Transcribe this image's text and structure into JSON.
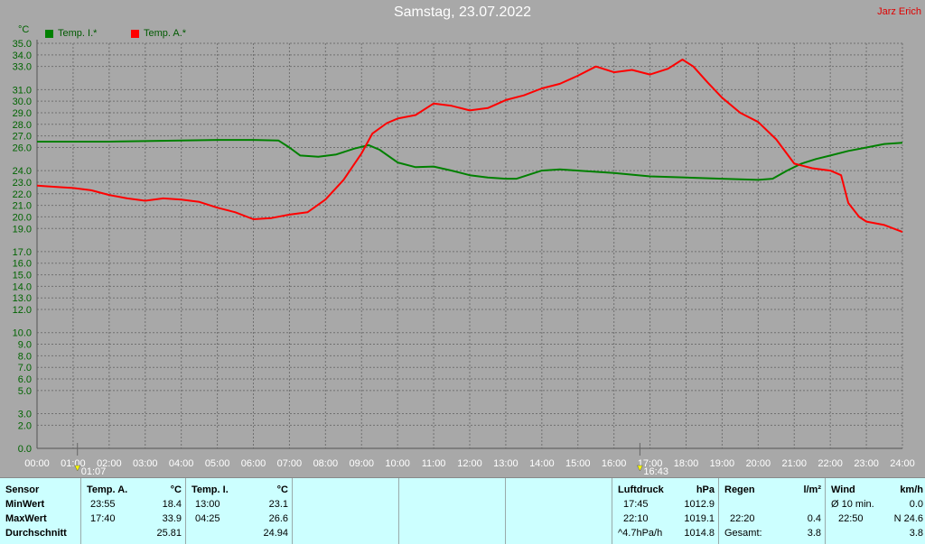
{
  "title": "Samstag, 23.07.2022",
  "author": "Jarz Erich",
  "colors": {
    "background": "#a8a8a8",
    "grid": "#707070",
    "axis": "#006400",
    "inside": "#008000",
    "outside": "#ff0000",
    "table_bg": "#ccffff"
  },
  "chart_data": {
    "type": "line",
    "title": "Samstag, 23.07.2022",
    "ylabel": "°C",
    "xlabel": "",
    "ylim": [
      0,
      35
    ],
    "grid": true,
    "legend_position": "top-left",
    "y_ticks": [
      "0.0",
      "2.0",
      "3.0",
      "5.0",
      "6.0",
      "7.0",
      "8.0",
      "9.0",
      "10.0",
      "12.0",
      "13.0",
      "14.0",
      "15.0",
      "16.0",
      "17.0",
      "19.0",
      "20.0",
      "21.0",
      "22.0",
      "23.0",
      "24.0",
      "26.0",
      "27.0",
      "28.0",
      "29.0",
      "30.0",
      "31.0",
      "33.0",
      "34.0",
      "35.0"
    ],
    "x_ticks": [
      "00:00",
      "01:00",
      "02:00",
      "03:00",
      "04:00",
      "05:00",
      "06:00",
      "07:00",
      "08:00",
      "09:00",
      "10:00",
      "11:00",
      "12:00",
      "13:00",
      "14:00",
      "15:00",
      "16:00",
      "17:00",
      "18:00",
      "19:00",
      "20:00",
      "21:00",
      "22:00",
      "23:00",
      "24:00"
    ],
    "markers": [
      {
        "label": "01:07",
        "hour": 1.12
      },
      {
        "label": "16:43",
        "hour": 16.72
      }
    ],
    "series": [
      {
        "name": "Temp. I.*",
        "color": "#008000",
        "points": [
          [
            0,
            26.5
          ],
          [
            1,
            26.5
          ],
          [
            2,
            26.5
          ],
          [
            3,
            26.55
          ],
          [
            4,
            26.6
          ],
          [
            5,
            26.65
          ],
          [
            6,
            26.65
          ],
          [
            6.7,
            26.6
          ],
          [
            7,
            26.0
          ],
          [
            7.3,
            25.3
          ],
          [
            7.8,
            25.2
          ],
          [
            8.3,
            25.4
          ],
          [
            8.8,
            25.9
          ],
          [
            9.2,
            26.2
          ],
          [
            9.5,
            25.8
          ],
          [
            10,
            24.7
          ],
          [
            10.5,
            24.3
          ],
          [
            11,
            24.35
          ],
          [
            11.5,
            24.0
          ],
          [
            12,
            23.6
          ],
          [
            12.5,
            23.4
          ],
          [
            13,
            23.3
          ],
          [
            13.3,
            23.3
          ],
          [
            13.6,
            23.6
          ],
          [
            14,
            24.0
          ],
          [
            14.5,
            24.1
          ],
          [
            15,
            24.0
          ],
          [
            16,
            23.8
          ],
          [
            17,
            23.5
          ],
          [
            18,
            23.4
          ],
          [
            19,
            23.3
          ],
          [
            20,
            23.2
          ],
          [
            20.4,
            23.3
          ],
          [
            20.8,
            24.0
          ],
          [
            21.2,
            24.6
          ],
          [
            21.6,
            25.0
          ],
          [
            22,
            25.3
          ],
          [
            22.5,
            25.7
          ],
          [
            23,
            26.0
          ],
          [
            23.5,
            26.3
          ],
          [
            24,
            26.4
          ]
        ]
      },
      {
        "name": "Temp. A.*",
        "color": "#ff0000",
        "points": [
          [
            0,
            22.7
          ],
          [
            0.5,
            22.6
          ],
          [
            1,
            22.5
          ],
          [
            1.5,
            22.3
          ],
          [
            2,
            21.9
          ],
          [
            2.5,
            21.6
          ],
          [
            3,
            21.4
          ],
          [
            3.5,
            21.6
          ],
          [
            4,
            21.5
          ],
          [
            4.5,
            21.3
          ],
          [
            5,
            20.8
          ],
          [
            5.5,
            20.4
          ],
          [
            6,
            19.8
          ],
          [
            6.5,
            19.9
          ],
          [
            7,
            20.2
          ],
          [
            7.5,
            20.4
          ],
          [
            8,
            21.5
          ],
          [
            8.5,
            23.2
          ],
          [
            9,
            25.5
          ],
          [
            9.3,
            27.2
          ],
          [
            9.7,
            28.1
          ],
          [
            10,
            28.5
          ],
          [
            10.5,
            28.8
          ],
          [
            11,
            29.8
          ],
          [
            11.5,
            29.6
          ],
          [
            12,
            29.2
          ],
          [
            12.5,
            29.4
          ],
          [
            13,
            30.1
          ],
          [
            13.5,
            30.5
          ],
          [
            14,
            31.1
          ],
          [
            14.5,
            31.5
          ],
          [
            15,
            32.2
          ],
          [
            15.5,
            33.0
          ],
          [
            16,
            32.5
          ],
          [
            16.5,
            32.7
          ],
          [
            17,
            32.3
          ],
          [
            17.5,
            32.8
          ],
          [
            17.9,
            33.6
          ],
          [
            18.2,
            33.0
          ],
          [
            18.6,
            31.6
          ],
          [
            19,
            30.3
          ],
          [
            19.5,
            29.0
          ],
          [
            20,
            28.2
          ],
          [
            20.5,
            26.7
          ],
          [
            21,
            24.6
          ],
          [
            21.5,
            24.2
          ],
          [
            22,
            24.0
          ],
          [
            22.3,
            23.6
          ],
          [
            22.5,
            21.2
          ],
          [
            22.8,
            20.0
          ],
          [
            23,
            19.6
          ],
          [
            23.5,
            19.3
          ],
          [
            24,
            18.7
          ]
        ]
      }
    ]
  },
  "table": {
    "row_labels": [
      "Sensor",
      "MinWert",
      "MaxWert",
      "Durchschnitt"
    ],
    "temp_a": {
      "header": "Temp. A.",
      "unit": "°C",
      "min_time": "23:55",
      "min": "18.4",
      "max_time": "17:40",
      "max": "33.9",
      "avg": "25.81"
    },
    "temp_i": {
      "header": "Temp. I.",
      "unit": "°C",
      "min_time": "13:00",
      "min": "23.1",
      "max_time": "04:25",
      "max": "26.6",
      "avg": "24.94"
    },
    "pressure": {
      "header": "Luftdruck",
      "unit": "hPa",
      "min_time": "17:45",
      "min": "1012.9",
      "max_time": "22:10",
      "max": "1019.1",
      "trend": "^4.7hPa/h",
      "avg": "1014.8"
    },
    "rain": {
      "header": "Regen",
      "unit": "l/m²",
      "time": "22:20",
      "value": "0.4",
      "total_label": "Gesamt:",
      "total": "3.8"
    },
    "wind": {
      "header": "Wind",
      "unit": "km/h",
      "avg_label": "Ø 10 min.",
      "avg": "0.0",
      "max_time": "22:50",
      "max": "N 24.6",
      "day_avg": "3.8"
    }
  }
}
